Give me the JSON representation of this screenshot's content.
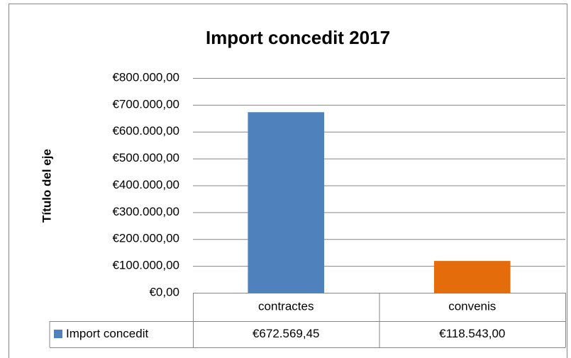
{
  "chart_data": {
    "type": "bar",
    "title": "Import concedit 2017",
    "y_label": "Título del eje",
    "categories": [
      "contractes",
      "convenis"
    ],
    "series": [
      {
        "name": "Import concedit",
        "color": "#4f81bd",
        "point_colors": [
          "#4f81bd",
          "#e46c0a"
        ],
        "values": [
          672569.45,
          118543
        ],
        "value_labels": [
          "€672.569,45",
          "€118.543,00"
        ]
      }
    ],
    "ylim": [
      0,
      800000
    ],
    "yticks": [
      {
        "value": 0,
        "label": "€0,00"
      },
      {
        "value": 100000,
        "label": "€100.000,00"
      },
      {
        "value": 200000,
        "label": "€200.000,00"
      },
      {
        "value": 300000,
        "label": "€300.000,00"
      },
      {
        "value": 400000,
        "label": "€400.000,00"
      },
      {
        "value": 500000,
        "label": "€500.000,00"
      },
      {
        "value": 600000,
        "label": "€600.000,00"
      },
      {
        "value": 700000,
        "label": "€700.000,00"
      },
      {
        "value": 800000,
        "label": "€800.000,00"
      }
    ],
    "grid": true
  }
}
